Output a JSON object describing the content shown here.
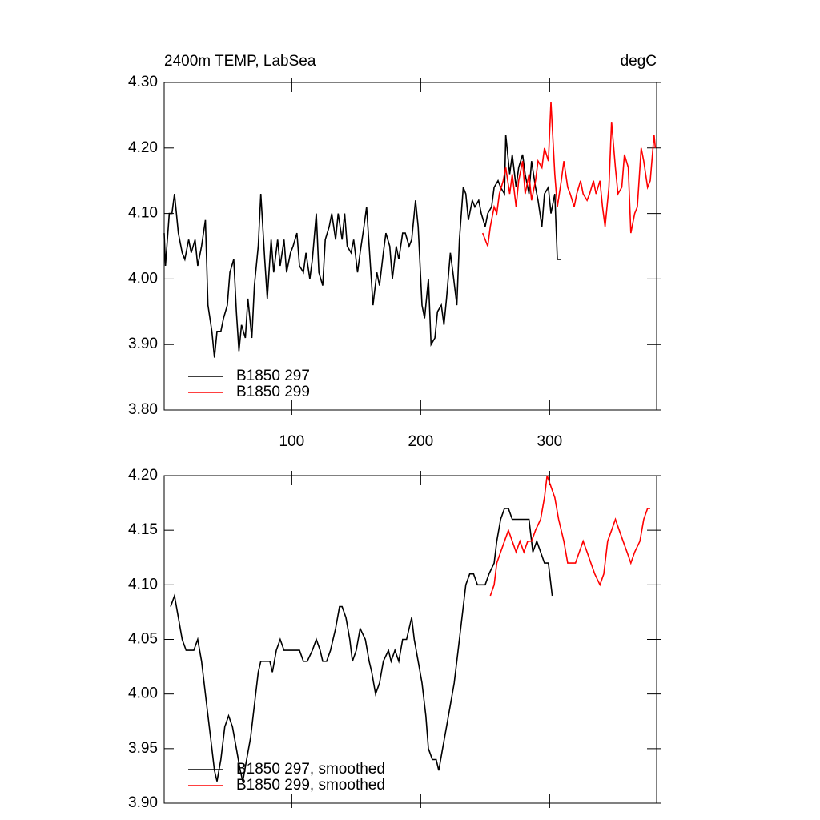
{
  "chart_data": [
    {
      "type": "line",
      "title": "2400m TEMP, LabSea",
      "units_label": "degC",
      "xlim": [
        1,
        383
      ],
      "xticks": [
        100,
        200,
        300
      ],
      "ylim": [
        3.8,
        4.3
      ],
      "yticks": [
        {
          "value": 3.8,
          "label": "3.80"
        },
        {
          "value": 3.9,
          "label": "3.90"
        },
        {
          "value": 4.0,
          "label": "4.00"
        },
        {
          "value": 4.1,
          "label": "4.10"
        },
        {
          "value": 4.2,
          "label": "4.20"
        },
        {
          "value": 4.3,
          "label": "4.30"
        }
      ],
      "legend": "lower left",
      "series": [
        {
          "name": "B1850 297",
          "color": "#000000",
          "x": [
            1,
            2,
            5,
            7,
            9,
            12,
            15,
            17,
            20,
            22,
            25,
            27,
            30,
            33,
            35,
            38,
            40,
            42,
            45,
            47,
            50,
            52,
            55,
            57,
            59,
            61,
            64,
            66,
            69,
            71,
            74,
            76,
            79,
            81,
            84,
            86,
            89,
            91,
            94,
            96,
            99,
            101,
            104,
            106,
            109,
            111,
            114,
            116,
            119,
            121,
            124,
            126,
            129,
            131,
            134,
            136,
            139,
            141,
            143,
            146,
            148,
            151,
            153,
            156,
            158,
            161,
            163,
            166,
            168,
            171,
            173,
            176,
            178,
            181,
            183,
            186,
            188,
            191,
            193,
            196,
            198,
            201,
            203,
            206,
            208,
            211,
            213,
            216,
            218,
            220,
            223,
            225,
            228,
            230,
            233,
            235,
            237,
            240,
            242,
            245,
            247,
            250,
            252,
            255,
            257,
            260,
            262,
            265,
            266,
            269,
            271,
            274,
            276,
            279,
            281,
            284,
            286,
            289,
            291,
            294,
            296,
            299,
            301,
            304,
            306,
            309
          ],
          "values": [
            4.07,
            4.02,
            4.1,
            4.1,
            4.13,
            4.07,
            4.04,
            4.03,
            4.06,
            4.04,
            4.06,
            4.02,
            4.05,
            4.09,
            3.96,
            3.92,
            3.88,
            3.92,
            3.92,
            3.94,
            3.96,
            4.01,
            4.03,
            3.95,
            3.89,
            3.93,
            3.91,
            3.97,
            3.91,
            3.99,
            4.05,
            4.13,
            4.03,
            3.97,
            4.06,
            4.01,
            4.06,
            4.02,
            4.06,
            4.01,
            4.04,
            4.05,
            4.07,
            4.02,
            4.01,
            4.04,
            4.0,
            4.03,
            4.1,
            4.01,
            3.99,
            4.06,
            4.08,
            4.1,
            4.06,
            4.1,
            4.06,
            4.1,
            4.05,
            4.04,
            4.06,
            4.01,
            4.04,
            4.08,
            4.11,
            4.02,
            3.96,
            4.01,
            3.99,
            4.04,
            4.07,
            4.05,
            4.0,
            4.05,
            4.03,
            4.07,
            4.07,
            4.05,
            4.06,
            4.12,
            4.08,
            3.96,
            3.94,
            4.0,
            3.9,
            3.91,
            3.95,
            3.96,
            3.93,
            3.97,
            4.04,
            4.01,
            3.96,
            4.06,
            4.14,
            4.13,
            4.09,
            4.12,
            4.11,
            4.12,
            4.1,
            4.08,
            4.1,
            4.11,
            4.14,
            4.15,
            4.14,
            4.13,
            4.22,
            4.16,
            4.19,
            4.14,
            4.17,
            4.19,
            4.16,
            4.13,
            4.18,
            4.14,
            4.12,
            4.08,
            4.13,
            4.14,
            4.1,
            4.13,
            4.03,
            4.03
          ]
        },
        {
          "name": "B1850 299",
          "color": "#ff0000",
          "x": [
            248,
            252,
            254,
            257,
            259,
            261,
            264,
            266,
            269,
            271,
            274,
            276,
            279,
            281,
            284,
            286,
            289,
            291,
            294,
            296,
            299,
            301,
            304,
            306,
            309,
            311,
            314,
            316,
            319,
            321,
            324,
            326,
            329,
            331,
            334,
            336,
            339,
            341,
            343,
            346,
            348,
            351,
            353,
            356,
            358,
            361,
            363,
            366,
            368,
            371,
            373,
            376,
            378,
            381,
            382
          ],
          "values": [
            4.07,
            4.05,
            4.08,
            4.11,
            4.1,
            4.13,
            4.15,
            4.17,
            4.13,
            4.16,
            4.11,
            4.15,
            4.18,
            4.13,
            4.16,
            4.12,
            4.15,
            4.18,
            4.17,
            4.2,
            4.18,
            4.27,
            4.16,
            4.11,
            4.15,
            4.18,
            4.14,
            4.13,
            4.11,
            4.13,
            4.15,
            4.13,
            4.12,
            4.13,
            4.15,
            4.13,
            4.15,
            4.11,
            4.08,
            4.14,
            4.24,
            4.17,
            4.13,
            4.14,
            4.19,
            4.17,
            4.07,
            4.1,
            4.11,
            4.2,
            4.18,
            4.14,
            4.15,
            4.22,
            4.2
          ]
        }
      ]
    },
    {
      "type": "line",
      "xlim": [
        1,
        383
      ],
      "xticks": [
        100,
        200,
        300
      ],
      "ylim": [
        3.9,
        4.2
      ],
      "yticks": [
        {
          "value": 3.9,
          "label": "3.90"
        },
        {
          "value": 3.95,
          "label": "3.95"
        },
        {
          "value": 4.0,
          "label": "4.00"
        },
        {
          "value": 4.05,
          "label": "4.05"
        },
        {
          "value": 4.1,
          "label": "4.10"
        },
        {
          "value": 4.15,
          "label": "4.15"
        },
        {
          "value": 4.2,
          "label": "4.20"
        }
      ],
      "legend": "lower left",
      "series": [
        {
          "name": "B1850 297, smoothed",
          "color": "#000000",
          "x": [
            6,
            9,
            12,
            15,
            18,
            21,
            24,
            27,
            30,
            34,
            37,
            40,
            42,
            45,
            48,
            51,
            54,
            57,
            60,
            62,
            65,
            68,
            71,
            74,
            76,
            80,
            83,
            85,
            88,
            91,
            94,
            97,
            100,
            103,
            106,
            109,
            112,
            116,
            119,
            122,
            124,
            127,
            130,
            134,
            137,
            139,
            142,
            145,
            147,
            150,
            153,
            157,
            160,
            162,
            165,
            168,
            171,
            175,
            177,
            180,
            183,
            186,
            189,
            193,
            195,
            198,
            201,
            204,
            206,
            209,
            212,
            214,
            217,
            220,
            223,
            226,
            229,
            232,
            235,
            238,
            241,
            244,
            247,
            250,
            253,
            257,
            259,
            262,
            265,
            268,
            271,
            275,
            278,
            281,
            284,
            287,
            290,
            293,
            296,
            299,
            302
          ],
          "values": [
            4.08,
            4.09,
            4.07,
            4.05,
            4.04,
            4.04,
            4.04,
            4.05,
            4.03,
            3.99,
            3.96,
            3.93,
            3.92,
            3.94,
            3.97,
            3.98,
            3.97,
            3.95,
            3.93,
            3.92,
            3.94,
            3.96,
            3.99,
            4.02,
            4.03,
            4.03,
            4.03,
            4.02,
            4.04,
            4.05,
            4.04,
            4.04,
            4.04,
            4.04,
            4.04,
            4.03,
            4.03,
            4.04,
            4.05,
            4.04,
            4.03,
            4.03,
            4.04,
            4.06,
            4.08,
            4.08,
            4.07,
            4.05,
            4.03,
            4.04,
            4.06,
            4.05,
            4.03,
            4.02,
            4.0,
            4.01,
            4.03,
            4.04,
            4.03,
            4.04,
            4.03,
            4.05,
            4.05,
            4.07,
            4.05,
            4.03,
            4.01,
            3.98,
            3.95,
            3.94,
            3.94,
            3.93,
            3.95,
            3.97,
            3.99,
            4.01,
            4.04,
            4.07,
            4.1,
            4.11,
            4.11,
            4.1,
            4.1,
            4.1,
            4.11,
            4.12,
            4.14,
            4.16,
            4.17,
            4.17,
            4.16,
            4.16,
            4.16,
            4.16,
            4.16,
            4.13,
            4.14,
            4.13,
            4.12,
            4.12,
            4.09
          ]
        },
        {
          "name": "B1850 299, smoothed",
          "color": "#ff0000",
          "x": [
            254,
            257,
            259,
            262,
            265,
            268,
            271,
            274,
            277,
            280,
            283,
            286,
            289,
            293,
            296,
            298,
            301,
            304,
            307,
            311,
            314,
            317,
            320,
            323,
            326,
            329,
            332,
            335,
            339,
            342,
            345,
            348,
            351,
            354,
            357,
            360,
            363,
            366,
            370,
            373,
            376,
            378
          ],
          "values": [
            4.09,
            4.1,
            4.12,
            4.13,
            4.14,
            4.15,
            4.14,
            4.13,
            4.14,
            4.13,
            4.14,
            4.14,
            4.15,
            4.16,
            4.18,
            4.2,
            4.19,
            4.18,
            4.16,
            4.14,
            4.12,
            4.12,
            4.12,
            4.13,
            4.14,
            4.13,
            4.12,
            4.11,
            4.1,
            4.11,
            4.14,
            4.15,
            4.16,
            4.15,
            4.14,
            4.13,
            4.12,
            4.13,
            4.14,
            4.16,
            4.17,
            4.17
          ]
        }
      ]
    }
  ]
}
